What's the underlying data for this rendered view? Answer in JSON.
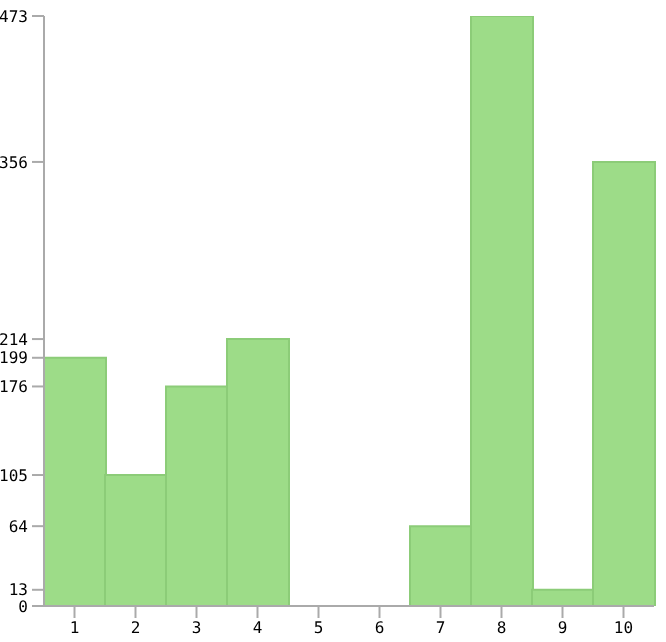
{
  "chart_data": {
    "type": "bar",
    "categories": [
      "1",
      "2",
      "3",
      "4",
      "5",
      "6",
      "7",
      "8",
      "9",
      "10"
    ],
    "values": [
      199,
      105,
      176,
      214,
      0,
      0,
      64,
      473,
      13,
      356
    ],
    "color": "#9ddc88",
    "ylim": [
      0,
      473
    ],
    "yticks": [
      0,
      13,
      64,
      105,
      176,
      199,
      214,
      356,
      473
    ],
    "grid": false
  }
}
